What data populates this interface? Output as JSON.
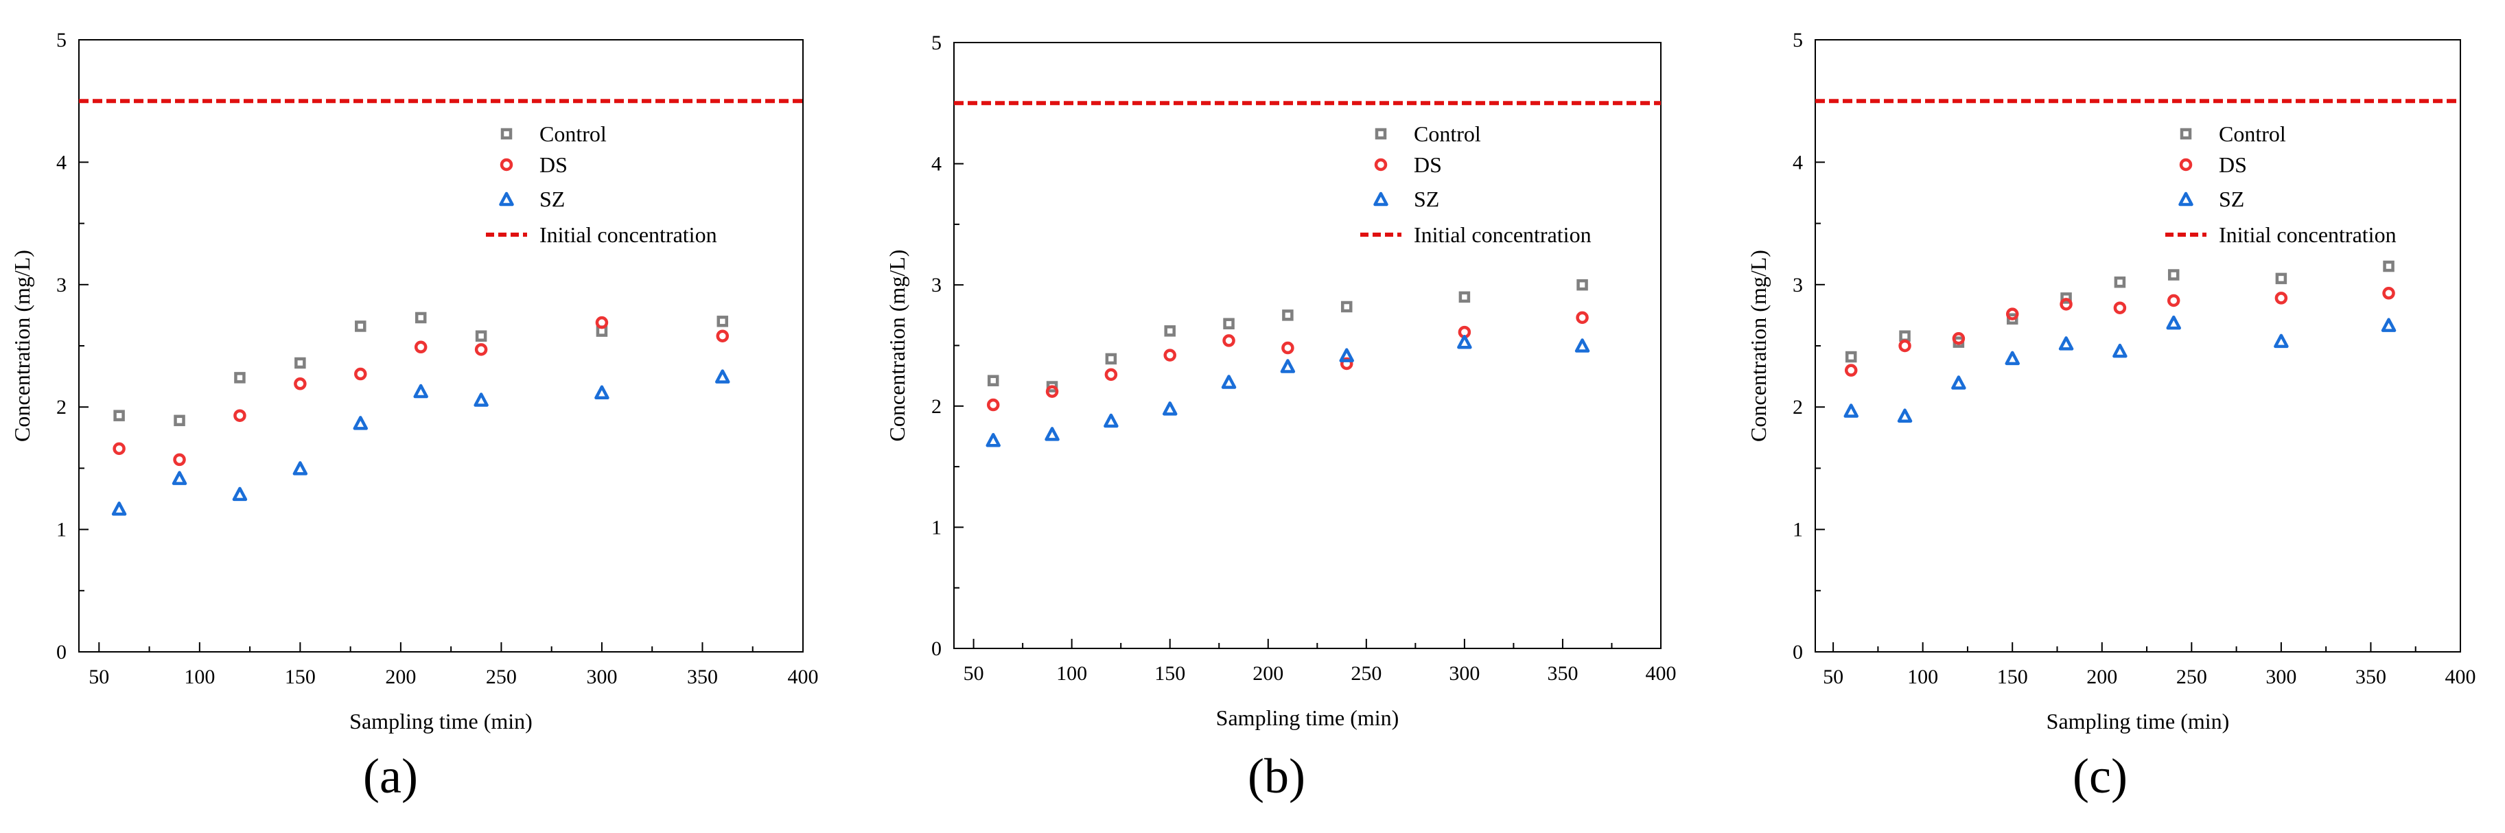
{
  "chart_data": [
    {
      "panel": "a",
      "type": "scatter",
      "xlabel": "Sampling time (min)",
      "ylabel": "Concentration (mg/L)",
      "xlim": [
        40,
        400
      ],
      "ylim": [
        0,
        5
      ],
      "xticks": [
        "50",
        "100",
        "150",
        "200",
        "250",
        "300",
        "350",
        "400"
      ],
      "yticks": [
        "0",
        "1",
        "2",
        "3",
        "4",
        "5"
      ],
      "x": [
        60,
        90,
        120,
        150,
        180,
        210,
        240,
        300,
        360
      ],
      "series": [
        {
          "name": "Control",
          "marker": "square",
          "color": "#808080",
          "values": [
            1.93,
            1.89,
            2.24,
            2.36,
            2.66,
            2.73,
            2.58,
            2.62,
            2.7
          ]
        },
        {
          "name": "DS",
          "marker": "circle",
          "color": "#ee3333",
          "values": [
            1.66,
            1.57,
            1.93,
            2.19,
            2.27,
            2.49,
            2.47,
            2.69,
            2.58
          ]
        },
        {
          "name": "SZ",
          "marker": "triangle",
          "color": "#1a6ed8",
          "values": [
            1.17,
            1.42,
            1.29,
            1.5,
            1.87,
            2.13,
            2.06,
            2.12,
            2.25
          ]
        }
      ],
      "reference_line": {
        "name": "Initial concentration",
        "value": 4.5,
        "color": "#e01010",
        "style": "dashed"
      },
      "legend_position": "top-right"
    },
    {
      "panel": "b",
      "type": "scatter",
      "xlabel": "Sampling time (min)",
      "ylabel": "Concentration (mg/L)",
      "xlim": [
        40,
        400
      ],
      "ylim": [
        0,
        5
      ],
      "xticks": [
        "50",
        "100",
        "150",
        "200",
        "250",
        "300",
        "350",
        "400"
      ],
      "yticks": [
        "0",
        "1",
        "2",
        "3",
        "4",
        "5"
      ],
      "x": [
        60,
        90,
        120,
        150,
        180,
        210,
        240,
        300,
        360
      ],
      "series": [
        {
          "name": "Control",
          "marker": "square",
          "color": "#808080",
          "values": [
            2.21,
            2.16,
            2.39,
            2.62,
            2.68,
            2.75,
            2.82,
            2.9,
            3.0
          ]
        },
        {
          "name": "DS",
          "marker": "circle",
          "color": "#ee3333",
          "values": [
            2.01,
            2.12,
            2.26,
            2.42,
            2.54,
            2.48,
            2.35,
            2.61,
            2.73
          ]
        },
        {
          "name": "SZ",
          "marker": "triangle",
          "color": "#1a6ed8",
          "values": [
            1.72,
            1.77,
            1.88,
            1.98,
            2.2,
            2.33,
            2.42,
            2.53,
            2.5
          ]
        }
      ],
      "reference_line": {
        "name": "Initial concentration",
        "value": 4.5,
        "color": "#e01010",
        "style": "dashed"
      },
      "legend_position": "top-right"
    },
    {
      "panel": "c",
      "type": "scatter",
      "xlabel": "Sampling time (min)",
      "ylabel": "Concentration (mg/L)",
      "xlim": [
        40,
        400
      ],
      "ylim": [
        0,
        5
      ],
      "xticks": [
        "50",
        "100",
        "150",
        "200",
        "250",
        "300",
        "350",
        "400"
      ],
      "yticks": [
        "0",
        "1",
        "2",
        "3",
        "4",
        "5"
      ],
      "x": [
        60,
        90,
        120,
        150,
        180,
        210,
        240,
        300,
        360
      ],
      "series": [
        {
          "name": "Control",
          "marker": "square",
          "color": "#808080",
          "values": [
            2.41,
            2.58,
            2.53,
            2.72,
            2.89,
            3.02,
            3.08,
            3.05,
            3.15
          ]
        },
        {
          "name": "DS",
          "marker": "circle",
          "color": "#ee3333",
          "values": [
            2.3,
            2.5,
            2.56,
            2.76,
            2.84,
            2.81,
            2.87,
            2.89,
            2.93
          ]
        },
        {
          "name": "SZ",
          "marker": "triangle",
          "color": "#1a6ed8",
          "values": [
            1.97,
            1.93,
            2.2,
            2.4,
            2.52,
            2.46,
            2.69,
            2.54,
            2.67
          ]
        }
      ],
      "reference_line": {
        "name": "Initial concentration",
        "value": 4.5,
        "color": "#e01010",
        "style": "dashed"
      },
      "legend_position": "top-right"
    }
  ],
  "panel_labels": [
    "(a)",
    "(b)",
    "(c)"
  ]
}
